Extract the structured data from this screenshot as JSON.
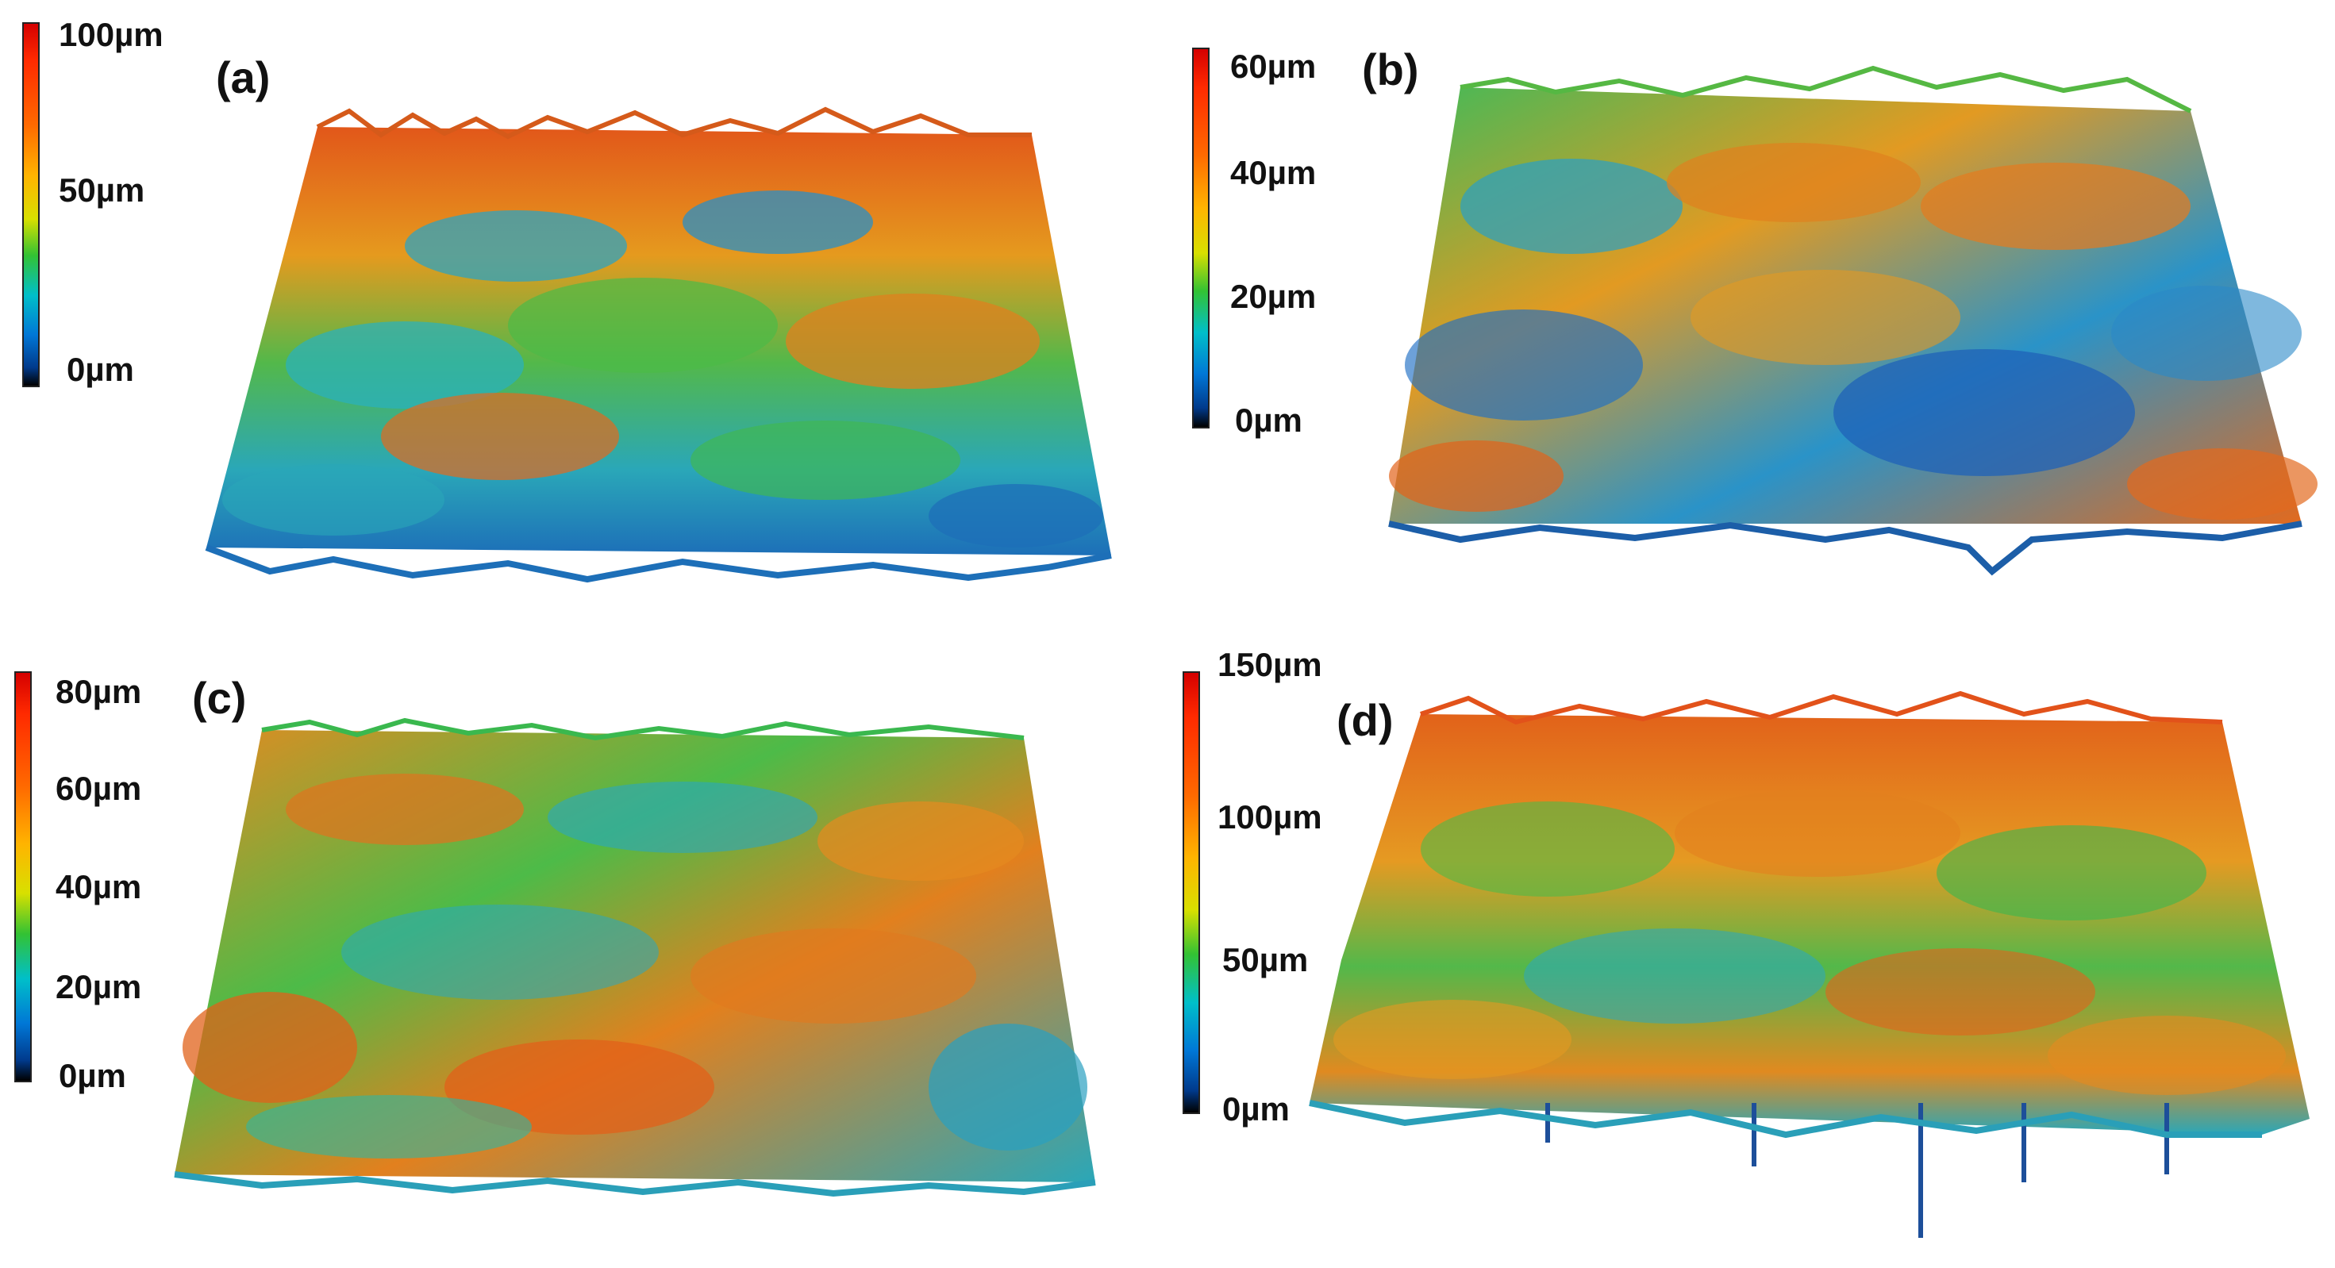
{
  "panels": [
    {
      "id": "a",
      "label": "(a)",
      "scale_ticks": [
        "100µm",
        "50µm",
        "0µm"
      ]
    },
    {
      "id": "b",
      "label": "(b)",
      "scale_ticks": [
        "60µm",
        "40µm",
        "20µm",
        "0µm"
      ]
    },
    {
      "id": "c",
      "label": "(c)",
      "scale_ticks": [
        "80µm",
        "60µm",
        "40µm",
        "20µm",
        "0µm"
      ]
    },
    {
      "id": "d",
      "label": "(d)",
      "scale_ticks": [
        "150µm",
        "100µm",
        "50µm",
        "0µm"
      ]
    }
  ],
  "colors": {
    "high": "#e01a00",
    "upper": "#ff8a00",
    "mid": "#c8d800",
    "lower": "#2db84a",
    "cyan": "#19b8c8",
    "low": "#1f6fc4",
    "base": "#0a2a6a"
  }
}
